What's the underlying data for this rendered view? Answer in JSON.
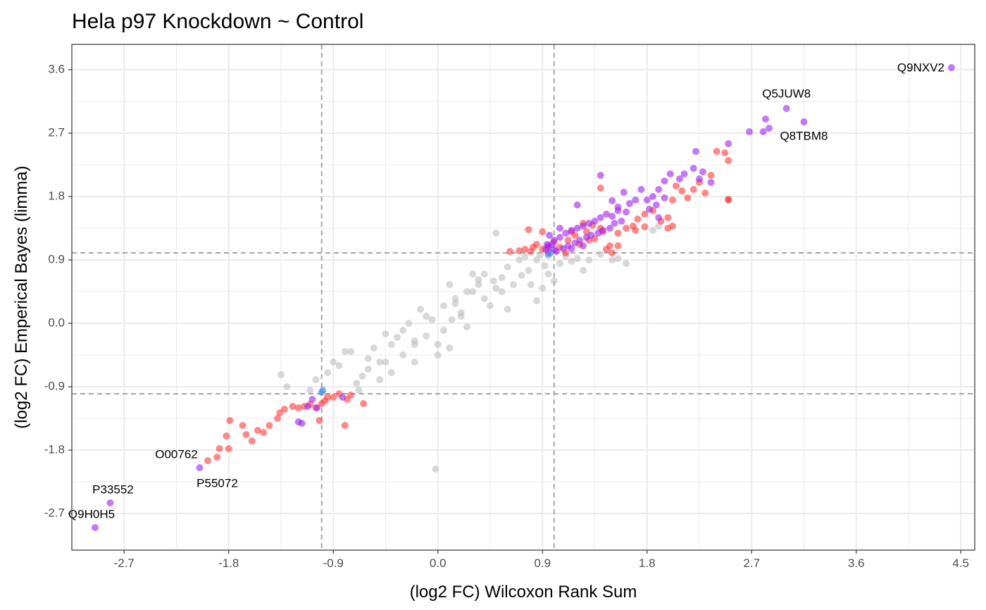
{
  "chart_data": {
    "type": "scatter",
    "title": "Hela p97 Knockdown ~ Control",
    "xlabel": "(log2 FC) Wilcoxon Rank Sum",
    "ylabel": "(log2 FC) Emperical Bayes (limma)",
    "xlim": [
      -3.15,
      4.62
    ],
    "ylim": [
      -3.22,
      3.96
    ],
    "x_ticks": [
      -2.7,
      -1.8,
      -0.9,
      0.0,
      0.9,
      1.8,
      2.7,
      3.6,
      4.5
    ],
    "x_tick_labels": [
      "-2.7",
      "-1.8",
      "-0.9",
      "0.0",
      "0.9",
      "1.8",
      "2.7",
      "3.6",
      "4.5"
    ],
    "y_ticks": [
      -2.7,
      -1.8,
      -0.9,
      0.0,
      0.9,
      1.8,
      2.7,
      3.6
    ],
    "y_tick_labels": [
      "-2.7",
      "-1.8",
      "-0.9",
      "0.0",
      "0.9",
      "1.8",
      "2.7",
      "3.6"
    ],
    "grid": true,
    "threshold_lines": {
      "x": [
        -1.0,
        1.0
      ],
      "y": [
        -1.0,
        1.0
      ]
    },
    "colors": {
      "grey": "#bebebe",
      "red": "#ff3b3b",
      "purple": "#a020f0",
      "blue": "#3a8ee6",
      "grid": "#ebebeb",
      "threshold": "#a6a6a6"
    },
    "series": [
      {
        "color": "red",
        "points": [
          [
            -1.79,
            -1.38
          ],
          [
            -1.68,
            -1.45
          ],
          [
            -1.82,
            -1.6
          ],
          [
            -1.88,
            -1.78
          ],
          [
            -1.98,
            -1.95
          ],
          [
            -1.55,
            -1.52
          ],
          [
            -1.6,
            -1.67
          ],
          [
            -1.65,
            -1.58
          ],
          [
            -1.45,
            -1.45
          ],
          [
            -1.38,
            -1.35
          ],
          [
            -1.32,
            -1.22
          ],
          [
            -1.25,
            -1.18
          ],
          [
            -1.2,
            -1.2
          ],
          [
            -1.15,
            -1.18
          ],
          [
            -1.1,
            -1.15
          ],
          [
            -1.05,
            -1.2
          ],
          [
            -1.0,
            -1.14
          ],
          [
            -0.97,
            -1.1
          ],
          [
            -0.95,
            -1.05
          ],
          [
            -0.9,
            -1.05
          ],
          [
            -0.85,
            -1.0
          ],
          [
            -0.78,
            -1.08
          ],
          [
            -0.75,
            -1.02
          ],
          [
            -0.8,
            -1.45
          ],
          [
            -1.02,
            -1.38
          ],
          [
            -0.64,
            -1.14
          ],
          [
            -1.8,
            -1.78
          ],
          [
            -1.9,
            -1.9
          ],
          [
            -1.5,
            -1.55
          ],
          [
            -1.36,
            -1.27
          ],
          [
            0.62,
            1.02
          ],
          [
            0.7,
            1.03
          ],
          [
            0.75,
            1.05
          ],
          [
            0.8,
            1.02
          ],
          [
            0.82,
            1.08
          ],
          [
            0.85,
            1.12
          ],
          [
            0.9,
            1.05
          ],
          [
            0.95,
            1.1
          ],
          [
            1.0,
            1.15
          ],
          [
            1.05,
            1.08
          ],
          [
            1.12,
            1.18
          ],
          [
            1.18,
            1.25
          ],
          [
            1.22,
            1.12
          ],
          [
            1.28,
            1.3
          ],
          [
            1.35,
            1.2
          ],
          [
            1.4,
            1.35
          ],
          [
            1.45,
            1.05
          ],
          [
            1.48,
            1.1
          ],
          [
            1.55,
            1.28
          ],
          [
            1.62,
            1.35
          ],
          [
            1.68,
            1.38
          ],
          [
            1.72,
            1.48
          ],
          [
            1.78,
            1.55
          ],
          [
            1.85,
            1.6
          ],
          [
            1.92,
            1.45
          ],
          [
            1.98,
            1.5
          ],
          [
            2.02,
            1.75
          ],
          [
            2.05,
            1.95
          ],
          [
            2.1,
            1.88
          ],
          [
            2.15,
            1.78
          ],
          [
            2.2,
            1.9
          ],
          [
            2.25,
            2.0
          ],
          [
            2.3,
            1.85
          ],
          [
            2.35,
            2.1
          ],
          [
            2.5,
            1.75
          ],
          [
            2.47,
            2.42
          ],
          [
            2.5,
            2.31
          ],
          [
            2.5,
            1.76
          ],
          [
            2.4,
            2.44
          ],
          [
            1.4,
            1.92
          ],
          [
            0.78,
            1.33
          ],
          [
            0.9,
            1.3
          ],
          [
            0.95,
            1.0
          ],
          [
            1.5,
            1.0
          ],
          [
            1.55,
            1.1
          ],
          [
            1.33,
            1.39
          ],
          [
            1.7,
            1.32
          ],
          [
            1.78,
            1.37
          ],
          [
            1.98,
            1.35
          ],
          [
            2.02,
            1.38
          ],
          [
            1.1,
            1.0
          ],
          [
            1.15,
            1.3
          ],
          [
            1.25,
            1.42
          ],
          [
            1.3,
            1.18
          ],
          [
            1.42,
            1.3
          ]
        ]
      },
      {
        "color": "purple",
        "points": [
          [
            4.42,
            3.63
          ],
          [
            3.0,
            3.05
          ],
          [
            3.15,
            2.86
          ],
          [
            2.82,
            2.9
          ],
          [
            2.85,
            2.77
          ],
          [
            2.8,
            2.72
          ],
          [
            2.68,
            2.72
          ],
          [
            2.5,
            2.55
          ],
          [
            2.22,
            2.44
          ],
          [
            2.2,
            2.2
          ],
          [
            2.12,
            2.12
          ],
          [
            2.08,
            2.05
          ],
          [
            2.0,
            2.12
          ],
          [
            1.95,
            2.02
          ],
          [
            1.9,
            1.9
          ],
          [
            2.25,
            2.05
          ],
          [
            2.35,
            2.0
          ],
          [
            2.28,
            2.15
          ],
          [
            1.85,
            1.8
          ],
          [
            1.75,
            1.9
          ],
          [
            1.7,
            1.75
          ],
          [
            1.65,
            1.7
          ],
          [
            1.62,
            1.58
          ],
          [
            1.55,
            1.65
          ],
          [
            1.5,
            1.52
          ],
          [
            1.45,
            1.55
          ],
          [
            1.4,
            1.5
          ],
          [
            1.35,
            1.45
          ],
          [
            1.3,
            1.42
          ],
          [
            1.25,
            1.38
          ],
          [
            1.2,
            1.35
          ],
          [
            1.15,
            1.32
          ],
          [
            1.1,
            1.28
          ],
          [
            1.05,
            1.22
          ],
          [
            1.0,
            1.18
          ],
          [
            0.98,
            1.12
          ],
          [
            0.95,
            1.08
          ],
          [
            0.93,
            1.05
          ],
          [
            1.02,
            1.02
          ],
          [
            1.08,
            1.06
          ],
          [
            1.12,
            1.1
          ],
          [
            1.18,
            1.14
          ],
          [
            1.22,
            1.18
          ],
          [
            1.28,
            1.22
          ],
          [
            1.32,
            1.25
          ],
          [
            1.38,
            1.28
          ],
          [
            1.42,
            1.32
          ],
          [
            1.48,
            1.35
          ],
          [
            1.52,
            1.42
          ],
          [
            1.58,
            1.45
          ],
          [
            1.82,
            1.62
          ],
          [
            1.88,
            1.68
          ],
          [
            1.95,
            1.78
          ],
          [
            1.4,
            2.1
          ],
          [
            1.2,
            1.68
          ],
          [
            1.6,
            1.86
          ],
          [
            1.5,
            1.74
          ],
          [
            1.8,
            1.75
          ],
          [
            1.9,
            1.5
          ],
          [
            1.05,
            1.35
          ],
          [
            0.96,
            1.25
          ],
          [
            1.0,
            1.05
          ],
          [
            0.94,
            1.12
          ],
          [
            1.15,
            1.06
          ],
          [
            1.25,
            1.1
          ],
          [
            -1.12,
            -1.18
          ],
          [
            -1.04,
            -1.2
          ],
          [
            -1.08,
            -1.08
          ],
          [
            -1.17,
            -1.42
          ],
          [
            -1.2,
            -1.4
          ],
          [
            -0.82,
            -1.05
          ],
          [
            -2.05,
            -2.05
          ],
          [
            -2.82,
            -2.55
          ],
          [
            -2.95,
            -2.9
          ],
          [
            1.55,
            1.6
          ]
        ]
      },
      {
        "color": "blue",
        "points": [
          [
            0.95,
            0.97
          ],
          [
            0.97,
            1.0
          ],
          [
            -0.99,
            -0.95
          ],
          [
            -1.0,
            -0.98
          ]
        ]
      },
      {
        "color": "grey",
        "points": [
          [
            0.5,
            1.28
          ],
          [
            0.48,
            0.6
          ],
          [
            0.15,
            0.28
          ],
          [
            -0.1,
            -0.18
          ],
          [
            -0.2,
            -0.25
          ],
          [
            0.3,
            0.45
          ],
          [
            -0.5,
            -0.55
          ],
          [
            -0.7,
            -0.85
          ],
          [
            -1.35,
            -0.73
          ],
          [
            -1.3,
            -0.9
          ],
          [
            -1.1,
            -0.95
          ],
          [
            -1.05,
            -0.8
          ],
          [
            -0.85,
            -0.6
          ],
          [
            -0.8,
            -0.4
          ],
          [
            0.78,
            0.75
          ],
          [
            0.85,
            0.9
          ],
          [
            1.5,
            0.9
          ],
          [
            1.55,
            0.92
          ],
          [
            1.62,
            0.85
          ],
          [
            1.85,
            1.32
          ],
          [
            1.9,
            1.38
          ],
          [
            0.85,
            0.32
          ],
          [
            0.6,
            0.2
          ],
          [
            0.35,
            0.62
          ],
          [
            0.2,
            0.1
          ],
          [
            0.0,
            -0.3
          ],
          [
            -0.2,
            -0.3
          ],
          [
            -0.3,
            -0.45
          ],
          [
            -0.6,
            -0.5
          ],
          [
            -0.45,
            -0.55
          ],
          [
            -0.4,
            -0.7
          ],
          [
            0.25,
            -0.05
          ],
          [
            0.1,
            -0.35
          ],
          [
            -0.15,
            0.2
          ],
          [
            -0.05,
            0.05
          ],
          [
            0.45,
            0.25
          ],
          [
            0.55,
            0.45
          ],
          [
            0.65,
            0.55
          ],
          [
            0.72,
            0.68
          ],
          [
            0.92,
            0.82
          ],
          [
            -0.02,
            -2.07
          ],
          [
            1.25,
            0.75
          ],
          [
            1.0,
            0.6
          ],
          [
            0.9,
            0.5
          ],
          [
            0.8,
            0.55
          ],
          [
            -0.75,
            -0.4
          ],
          [
            -0.65,
            -0.75
          ],
          [
            -0.55,
            -0.35
          ],
          [
            -0.35,
            -0.2
          ],
          [
            -0.25,
            0.0
          ],
          [
            0.05,
            0.25
          ],
          [
            0.15,
            0.35
          ],
          [
            0.25,
            0.45
          ],
          [
            0.35,
            0.55
          ],
          [
            0.4,
            0.7
          ],
          [
            0.55,
            0.65
          ],
          [
            0.6,
            0.8
          ],
          [
            0.7,
            0.9
          ],
          [
            0.75,
            0.95
          ],
          [
            0.88,
            0.97
          ],
          [
            -0.9,
            -0.55
          ],
          [
            -0.95,
            -0.7
          ],
          [
            -0.68,
            -0.95
          ],
          [
            -0.6,
            -0.65
          ],
          [
            -0.5,
            -0.8
          ],
          [
            0.1,
            0.55
          ],
          [
            0.3,
            0.7
          ],
          [
            0.2,
            0.15
          ],
          [
            0.4,
            0.35
          ],
          [
            0.5,
            0.5
          ],
          [
            -0.1,
            0.1
          ],
          [
            -0.3,
            -0.1
          ],
          [
            -0.4,
            -0.3
          ],
          [
            -0.45,
            -0.15
          ],
          [
            0.05,
            -0.1
          ],
          [
            1.1,
            0.95
          ],
          [
            1.15,
            0.88
          ],
          [
            1.2,
            0.92
          ],
          [
            1.3,
            0.9
          ],
          [
            1.4,
            0.98
          ],
          [
            0.95,
            0.7
          ],
          [
            1.05,
            0.85
          ],
          [
            -0.2,
            -0.55
          ],
          [
            0.0,
            -0.45
          ],
          [
            0.12,
            0.05
          ]
        ]
      }
    ],
    "labels": [
      {
        "text": "Q9NXV2",
        "x": 4.42,
        "y": 3.63,
        "dx": -10,
        "dy": 1,
        "anchor": "end"
      },
      {
        "text": "Q5JUW8",
        "x": 3.0,
        "y": 3.05,
        "dx": 0,
        "dy": -20,
        "anchor": "middle"
      },
      {
        "text": "Q8TBM8",
        "x": 3.15,
        "y": 2.86,
        "dx": 0,
        "dy": 21,
        "anchor": "middle"
      },
      {
        "text": "O00762",
        "x": -2.25,
        "y": -1.82,
        "dx": 0,
        "dy": 5,
        "anchor": "middle"
      },
      {
        "text": "P55072",
        "x": -2.05,
        "y": -2.05,
        "dx": 25,
        "dy": 23,
        "anchor": "middle"
      },
      {
        "text": "P33552",
        "x": -2.82,
        "y": -2.55,
        "dx": 4,
        "dy": -18,
        "anchor": "middle"
      },
      {
        "text": "Q9H0H5",
        "x": -2.95,
        "y": -2.9,
        "dx": -5,
        "dy": -18,
        "anchor": "middle"
      }
    ]
  }
}
